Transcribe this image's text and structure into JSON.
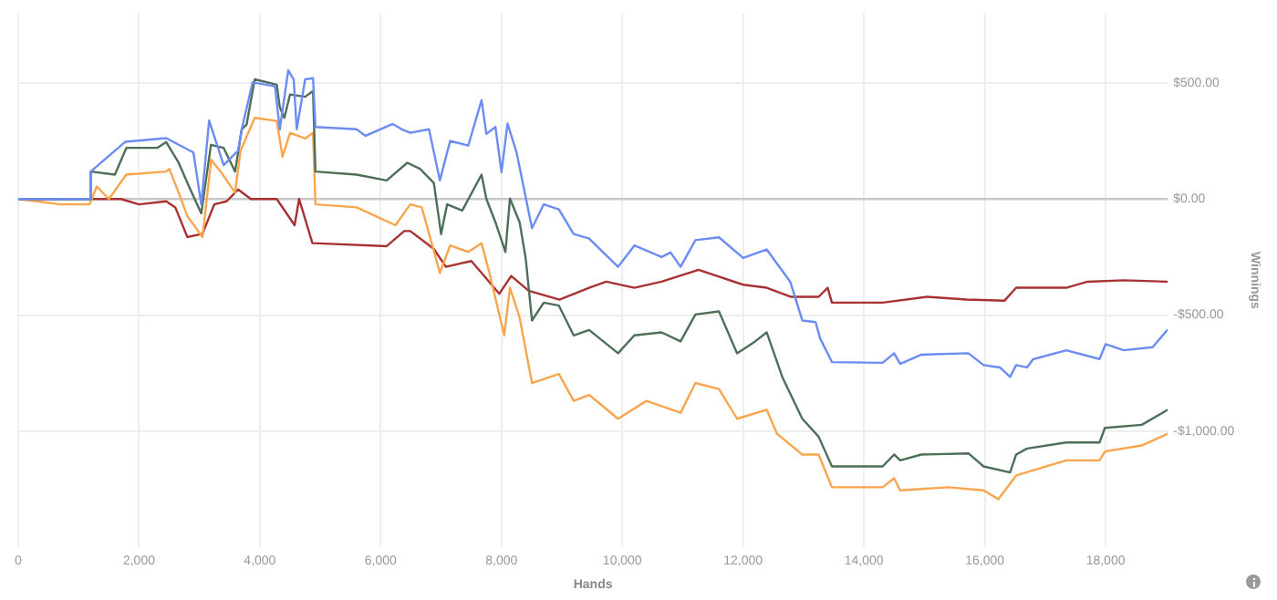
{
  "chart_data": {
    "type": "line",
    "xlabel": "Hands",
    "ylabel": "Winnings",
    "xlim": [
      0,
      19030
    ],
    "ylim": [
      -1500,
      800
    ],
    "xticks": [
      0,
      {
        "value": 2000,
        "label": "2,000"
      },
      {
        "value": 4000,
        "label": "4,000"
      },
      {
        "value": 6000,
        "label": "6,000"
      },
      {
        "value": 8000,
        "label": "8,000"
      },
      {
        "value": 10000,
        "label": "10,000"
      },
      {
        "value": 12000,
        "label": "12,000"
      },
      {
        "value": 14000,
        "label": "14,000"
      },
      {
        "value": 16000,
        "label": "16,000"
      },
      {
        "value": 18000,
        "label": "18,000"
      }
    ],
    "yticks": [
      {
        "value": -1000,
        "label": "-$1,000.00"
      },
      {
        "value": -500,
        "label": "-$500.00"
      },
      {
        "value": 0,
        "label": "$0.00"
      },
      {
        "value": 500,
        "label": "$500.00"
      }
    ],
    "grid": true,
    "legend": false,
    "marker": "none",
    "line_style": "solid",
    "ref_lines": [
      {
        "axis": "y",
        "value": 0,
        "color": "#c8c8c8"
      }
    ],
    "series": [
      {
        "color": "#6b8cf2",
        "x": [
          0,
          1180,
          1200,
          1770,
          2450,
          2900,
          3030,
          3160,
          3400,
          3640,
          3700,
          3880,
          4250,
          4330,
          4470,
          4560,
          4610,
          4750,
          4880,
          4920,
          5600,
          5750,
          6200,
          6350,
          6490,
          6800,
          6980,
          7150,
          7450,
          7670,
          7750,
          7900,
          8000,
          8100,
          8250,
          8505,
          8700,
          8950,
          9195,
          9450,
          9930,
          10200,
          10650,
          10800,
          10965,
          11210,
          11600,
          12000,
          12390,
          12780,
          12980,
          13200,
          13275,
          13470,
          14310,
          14500,
          14600,
          14950,
          15730,
          15980,
          16250,
          16420,
          16520,
          16700,
          16800,
          17350,
          17900,
          18000,
          18300,
          18780,
          19030
        ],
        "values": [
          0,
          0,
          118,
          246,
          262,
          200,
          -23,
          338,
          146,
          208,
          300,
          502,
          485,
          300,
          554,
          515,
          300,
          515,
          520,
          310,
          300,
          272,
          323,
          300,
          285,
          300,
          80,
          250,
          230,
          425,
          280,
          310,
          115,
          325,
          200,
          -126,
          -23,
          -45,
          -151,
          -170,
          -292,
          -200,
          -250,
          -230,
          -292,
          -177,
          -165,
          -254,
          -217,
          -356,
          -523,
          -530,
          -600,
          -702,
          -705,
          -664,
          -710,
          -670,
          -664,
          -715,
          -725,
          -766,
          -715,
          -725,
          -690,
          -651,
          -689,
          -625,
          -651,
          -638,
          -561
        ]
      },
      {
        "color": "#4d6f58",
        "x": [
          0,
          1180,
          1200,
          1600,
          1790,
          2300,
          2450,
          2655,
          2850,
          3030,
          3190,
          3400,
          3590,
          3700,
          3780,
          3915,
          4280,
          4330,
          4405,
          4500,
          4750,
          4880,
          4920,
          5600,
          6100,
          6440,
          6650,
          6880,
          7000,
          7100,
          7350,
          7670,
          7750,
          7900,
          8065,
          8140,
          8300,
          8400,
          8505,
          8700,
          8950,
          9195,
          9450,
          9930,
          10200,
          10650,
          10965,
          11210,
          11600,
          11900,
          12200,
          12390,
          12650,
          12980,
          13250,
          13470,
          14310,
          14500,
          14600,
          14950,
          15730,
          15980,
          16420,
          16520,
          16700,
          17350,
          17900,
          17990,
          18600,
          19030
        ],
        "values": [
          0,
          0,
          118,
          105,
          220,
          220,
          245,
          156,
          40,
          -62,
          233,
          220,
          118,
          300,
          320,
          515,
          492,
          395,
          349,
          450,
          440,
          465,
          118,
          105,
          80,
          156,
          130,
          69,
          -151,
          -23,
          -50,
          105,
          0,
          -100,
          -228,
          2,
          -100,
          -254,
          -523,
          -446,
          -459,
          -587,
          -564,
          -664,
          -587,
          -574,
          -613,
          -497,
          -484,
          -664,
          -613,
          -574,
          -767,
          -946,
          -1023,
          -1151,
          -1151,
          -1100,
          -1125,
          -1100,
          -1095,
          -1151,
          -1177,
          -1100,
          -1074,
          -1048,
          -1048,
          -985,
          -972,
          -907
        ]
      },
      {
        "color": "#f9a54e",
        "x": [
          0,
          700,
          1180,
          1300,
          1500,
          1790,
          2450,
          2500,
          2655,
          2800,
          3050,
          3195,
          3350,
          3590,
          3680,
          3915,
          4280,
          4375,
          4500,
          4750,
          4880,
          4920,
          5600,
          6245,
          6490,
          6680,
          6980,
          7150,
          7450,
          7670,
          7800,
          8045,
          8140,
          8300,
          8505,
          8950,
          9195,
          9450,
          9930,
          10400,
          10965,
          11210,
          11600,
          11900,
          12390,
          12560,
          12980,
          13250,
          13470,
          14310,
          14500,
          14600,
          15400,
          15980,
          16225,
          16520,
          17350,
          17900,
          17990,
          18600,
          19030
        ],
        "values": [
          0,
          -23,
          -23,
          54,
          0,
          105,
          118,
          130,
          28,
          -74,
          -164,
          169,
          118,
          28,
          208,
          349,
          336,
          182,
          285,
          260,
          285,
          -23,
          -36,
          -113,
          -23,
          -36,
          -318,
          -200,
          -228,
          -190,
          -318,
          -587,
          -382,
          -510,
          -792,
          -753,
          -869,
          -843,
          -946,
          -869,
          -920,
          -792,
          -818,
          -946,
          -907,
          -1010,
          -1100,
          -1100,
          -1241,
          -1241,
          -1202,
          -1254,
          -1241,
          -1254,
          -1292,
          -1190,
          -1125,
          -1125,
          -1087,
          -1061,
          -1010
        ]
      },
      {
        "color": "#a83232",
        "x": [
          0,
          1180,
          1700,
          2000,
          2450,
          2600,
          2800,
          3050,
          3245,
          3450,
          3640,
          3850,
          4280,
          4575,
          4650,
          4870,
          6100,
          6390,
          6490,
          6880,
          7080,
          7500,
          7670,
          7965,
          8160,
          8450,
          8960,
          9450,
          9735,
          10200,
          10650,
          11260,
          12000,
          12390,
          12785,
          13250,
          13400,
          13470,
          14310,
          15045,
          15700,
          16325,
          16520,
          17350,
          17700,
          18300,
          19030
        ],
        "values": [
          0,
          0,
          0,
          -23,
          -10,
          -36,
          -164,
          -150,
          -23,
          -10,
          41,
          0,
          0,
          -113,
          0,
          -190,
          -203,
          -138,
          -138,
          -215,
          -292,
          -267,
          -318,
          -408,
          -331,
          -395,
          -433,
          -382,
          -356,
          -382,
          -356,
          -305,
          -369,
          -382,
          -421,
          -421,
          -382,
          -446,
          -446,
          -421,
          -433,
          -438,
          -382,
          -382,
          -356,
          -350,
          -356
        ]
      }
    ]
  }
}
